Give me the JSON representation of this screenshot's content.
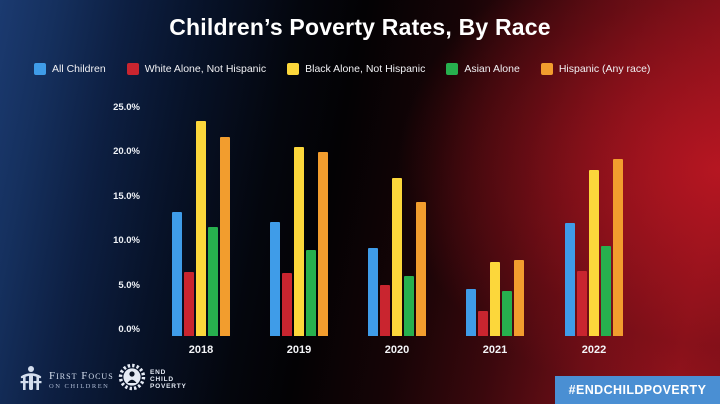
{
  "title": "Children’s Poverty Rates, By Race",
  "legend": [
    {
      "label": "All Children",
      "color": "#3f9ce8"
    },
    {
      "label": "White Alone, Not Hispanic",
      "color": "#c9252f"
    },
    {
      "label": "Black Alone, Not Hispanic",
      "color": "#fcd73b"
    },
    {
      "label": "Asian Alone",
      "color": "#27b04e"
    },
    {
      "label": "Hispanic (Any race)",
      "color": "#f29d2e"
    }
  ],
  "chart_data": {
    "type": "bar",
    "title": "Children’s Poverty Rates, By Race",
    "categories": [
      "2018",
      "2019",
      "2020",
      "2021",
      "2022"
    ],
    "series": [
      {
        "name": "All Children",
        "color": "#3f9ce8",
        "values": [
          13.7,
          12.5,
          9.7,
          5.2,
          12.4
        ]
      },
      {
        "name": "White Alone, Not Hispanic",
        "color": "#c9252f",
        "values": [
          7.0,
          6.9,
          5.6,
          2.7,
          7.2
        ]
      },
      {
        "name": "Black Alone, Not Hispanic",
        "color": "#fcd73b",
        "values": [
          23.7,
          20.8,
          17.4,
          8.2,
          18.3
        ]
      },
      {
        "name": "Asian Alone",
        "color": "#27b04e",
        "values": [
          12.0,
          9.5,
          6.6,
          5.0,
          9.9
        ]
      },
      {
        "name": "Hispanic (Any race)",
        "color": "#f29d2e",
        "values": [
          21.9,
          20.3,
          14.8,
          8.4,
          19.5
        ]
      }
    ],
    "xlabel": "",
    "ylabel": "",
    "ylim": [
      0,
      25
    ],
    "yticks": [
      "25.0%",
      "20.0%",
      "15.0%",
      "10.0%",
      "5.0%",
      "0.0%"
    ],
    "grid": false,
    "legend_position": "top"
  },
  "footer": {
    "brand_primary": {
      "line1": "First Focus",
      "line2": "on Children"
    },
    "brand_secondary": {
      "line1": "END",
      "line2": "CHILD",
      "line3": "POVERTY"
    },
    "hashtag": "#ENDCHILDPOVERTY",
    "hashtag_bg": "#4a8fd3"
  }
}
